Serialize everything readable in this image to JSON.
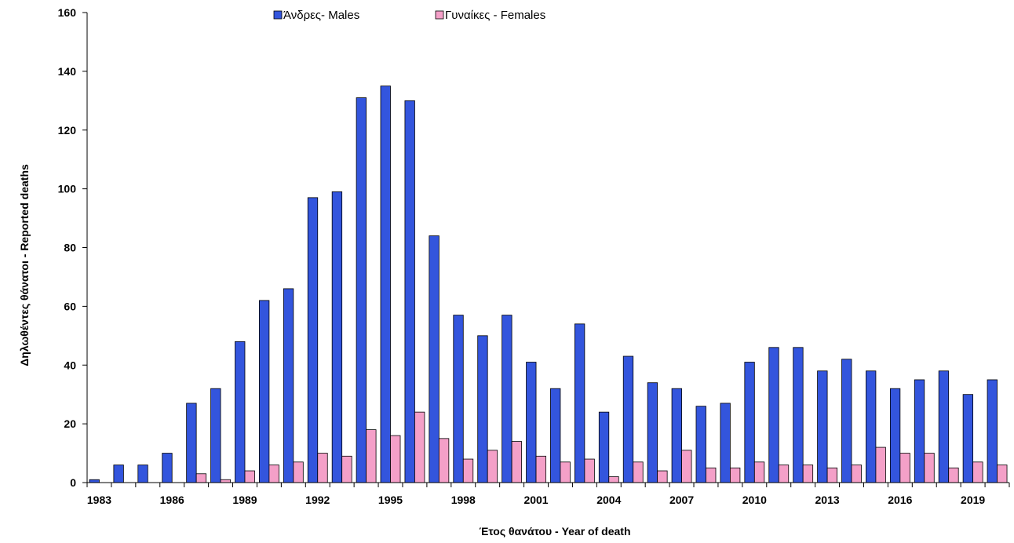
{
  "chart_data": {
    "type": "bar",
    "ylabel": "Δηλωθέντες θάνατοι -  Reported deaths",
    "xlabel": "Έτος θανάτου - Year of death",
    "ylim": [
      0,
      160
    ],
    "yticks": [
      0,
      20,
      40,
      60,
      80,
      100,
      120,
      140,
      160
    ],
    "xtick_labels": [
      "1983",
      "1986",
      "1989",
      "1992",
      "1995",
      "1998",
      "2001",
      "2004",
      "2007",
      "2010",
      "2013",
      "2016",
      "2019"
    ],
    "grid": false,
    "legend_position": "top",
    "categories": [
      "1983",
      "1984",
      "1985",
      "1986",
      "1987",
      "1988",
      "1989",
      "1990",
      "1991",
      "1992",
      "1993",
      "1994",
      "1995",
      "1996",
      "1997",
      "1998",
      "1999",
      "2000",
      "2001",
      "2002",
      "2003",
      "2004",
      "2005",
      "2006",
      "2007",
      "2008",
      "2009",
      "2010",
      "2011",
      "2012",
      "2013",
      "2014",
      "2015",
      "2016",
      "2017",
      "2018",
      "2019",
      "2020"
    ],
    "series": [
      {
        "name": "Άνδρες- Males",
        "color": "#3355dd",
        "values": [
          1,
          6,
          6,
          10,
          27,
          32,
          48,
          62,
          66,
          97,
          99,
          131,
          135,
          130,
          84,
          57,
          50,
          57,
          41,
          32,
          54,
          24,
          43,
          34,
          32,
          26,
          27,
          41,
          46,
          46,
          38,
          42,
          38,
          32,
          35,
          38,
          30,
          35
        ]
      },
      {
        "name": "Γυναίκες - Females",
        "color": "#f4a0c8",
        "values": [
          0,
          0,
          0,
          0,
          3,
          1,
          4,
          6,
          7,
          10,
          9,
          18,
          16,
          24,
          15,
          8,
          11,
          14,
          9,
          7,
          8,
          2,
          7,
          4,
          11,
          5,
          5,
          7,
          6,
          6,
          5,
          6,
          12,
          10,
          10,
          5,
          7,
          6
        ]
      }
    ]
  }
}
